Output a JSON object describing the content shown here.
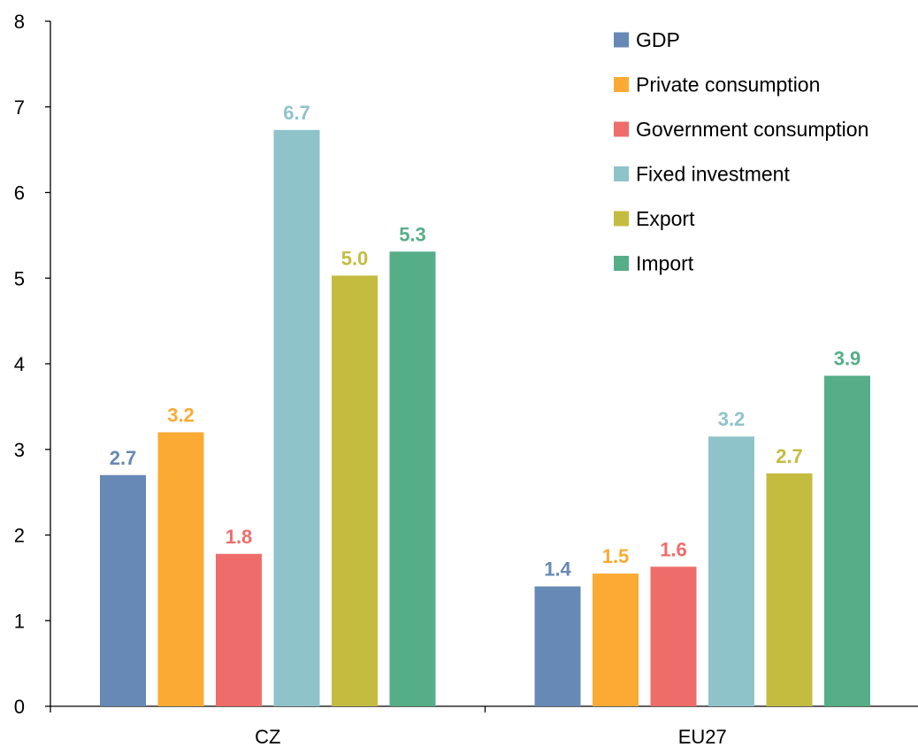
{
  "chart_data": {
    "type": "bar",
    "categories": [
      "CZ",
      "EU27"
    ],
    "series": [
      {
        "name": "GDP",
        "values": [
          2.7,
          1.4
        ],
        "labels": [
          "2.7",
          "1.4"
        ],
        "color": "#6689B5"
      },
      {
        "name": "Private consumption",
        "values": [
          3.2,
          1.55
        ],
        "labels": [
          "3.2",
          "1.5"
        ],
        "color": "#FBAB33"
      },
      {
        "name": "Government consumption",
        "values": [
          1.78,
          1.63
        ],
        "labels": [
          "1.8",
          "1.6"
        ],
        "color": "#EE6D6A"
      },
      {
        "name": "Fixed investment",
        "values": [
          6.73,
          3.15
        ],
        "labels": [
          "6.7",
          "3.2"
        ],
        "color": "#8FC3CA"
      },
      {
        "name": "Export",
        "values": [
          5.03,
          2.72
        ],
        "labels": [
          "5.0",
          "2.7"
        ],
        "color": "#C4BC3F"
      },
      {
        "name": "Import",
        "values": [
          5.31,
          3.86
        ],
        "labels": [
          "5.3",
          "3.9"
        ],
        "color": "#55AE88"
      }
    ],
    "yticks": [
      "0",
      "1",
      "2",
      "3",
      "4",
      "5",
      "6",
      "7",
      "8"
    ],
    "ylim": [
      0,
      8
    ],
    "title": "",
    "xlabel": "",
    "ylabel": "",
    "grid": false,
    "legend_position": "top-right"
  }
}
